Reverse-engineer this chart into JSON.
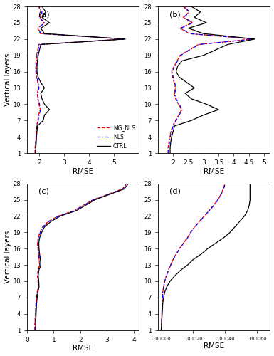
{
  "layers": [
    1,
    2,
    3,
    4,
    5,
    6,
    7,
    8,
    9,
    10,
    11,
    12,
    13,
    14,
    15,
    16,
    17,
    18,
    19,
    20,
    21,
    22,
    23,
    24,
    25,
    26,
    27,
    28
  ],
  "panel_labels": [
    "(a)",
    "(b)",
    "(c)",
    "(d)"
  ],
  "ylabel": "Vertical layers",
  "legend_labels": [
    "MG_NLS",
    "NLS",
    "CTRL"
  ],
  "panel_a": {
    "ctrl": [
      1.85,
      1.85,
      1.87,
      1.88,
      1.9,
      1.92,
      2.15,
      2.2,
      2.4,
      2.2,
      2.1,
      2.05,
      2.2,
      2.05,
      1.95,
      1.9,
      1.9,
      1.92,
      1.95,
      2.0,
      2.05,
      5.45,
      2.2,
      2.05,
      2.4,
      2.1,
      2.25,
      2.1
    ],
    "nls": [
      1.83,
      1.83,
      1.85,
      1.87,
      1.88,
      1.9,
      1.95,
      1.98,
      2.05,
      2.0,
      1.95,
      1.93,
      1.98,
      1.95,
      1.9,
      1.87,
      1.87,
      1.88,
      1.9,
      1.95,
      1.98,
      5.42,
      2.05,
      1.95,
      2.2,
      2.0,
      2.1,
      1.98
    ],
    "mg_nls": [
      1.82,
      1.82,
      1.84,
      1.86,
      1.87,
      1.89,
      1.93,
      1.96,
      2.03,
      1.98,
      1.93,
      1.91,
      1.96,
      1.93,
      1.88,
      1.85,
      1.85,
      1.86,
      1.88,
      1.93,
      1.96,
      5.4,
      2.03,
      1.93,
      2.18,
      1.98,
      2.08,
      1.96
    ],
    "xlim": [
      1.5,
      6.0
    ],
    "xticks": [
      2.0,
      3.0,
      4.0,
      5.0
    ]
  },
  "panel_b": {
    "ctrl": [
      1.9,
      1.9,
      1.92,
      1.95,
      2.0,
      2.05,
      2.6,
      3.0,
      3.5,
      3.1,
      2.6,
      2.4,
      2.7,
      2.45,
      2.2,
      2.1,
      2.15,
      2.3,
      3.0,
      3.4,
      3.8,
      4.7,
      3.0,
      2.5,
      3.1,
      2.7,
      2.9,
      2.6
    ],
    "nls": [
      1.85,
      1.85,
      1.88,
      1.9,
      1.95,
      2.0,
      2.1,
      2.2,
      2.3,
      2.2,
      2.1,
      2.05,
      2.1,
      2.05,
      2.0,
      1.97,
      2.05,
      2.15,
      2.25,
      2.55,
      2.85,
      4.65,
      2.55,
      2.25,
      2.65,
      2.35,
      2.55,
      2.35
    ],
    "mg_nls": [
      1.83,
      1.83,
      1.86,
      1.88,
      1.93,
      1.98,
      2.08,
      2.18,
      2.28,
      2.18,
      2.08,
      2.03,
      2.08,
      2.03,
      1.98,
      1.95,
      2.03,
      2.13,
      2.23,
      2.53,
      2.83,
      4.63,
      2.53,
      2.23,
      2.63,
      2.33,
      2.53,
      2.33
    ],
    "xlim": [
      1.5,
      5.2
    ],
    "xticks": [
      2.0,
      2.5,
      3.0,
      3.5,
      4.0,
      4.5,
      5.0
    ]
  },
  "panel_c": {
    "ctrl": [
      0.32,
      0.32,
      0.33,
      0.34,
      0.35,
      0.36,
      0.38,
      0.41,
      0.45,
      0.44,
      0.42,
      0.44,
      0.52,
      0.5,
      0.47,
      0.45,
      0.44,
      0.47,
      0.55,
      0.65,
      0.9,
      1.25,
      1.85,
      2.2,
      2.55,
      3.1,
      3.65,
      3.8
    ],
    "nls": [
      0.3,
      0.3,
      0.31,
      0.32,
      0.33,
      0.34,
      0.36,
      0.39,
      0.43,
      0.42,
      0.4,
      0.42,
      0.48,
      0.46,
      0.44,
      0.42,
      0.4,
      0.43,
      0.5,
      0.6,
      0.82,
      1.18,
      1.78,
      2.13,
      2.5,
      3.05,
      3.6,
      3.75
    ],
    "mg_nls": [
      0.29,
      0.29,
      0.3,
      0.31,
      0.32,
      0.33,
      0.35,
      0.38,
      0.42,
      0.41,
      0.39,
      0.41,
      0.47,
      0.45,
      0.43,
      0.41,
      0.39,
      0.42,
      0.48,
      0.58,
      0.8,
      1.16,
      1.76,
      2.11,
      2.48,
      3.03,
      3.58,
      3.73
    ],
    "xlim": [
      0.0,
      4.2
    ],
    "xticks": [
      0.0,
      1.0,
      2.0,
      3.0,
      4.0
    ]
  },
  "panel_d": {
    "ctrl": [
      0.0,
      2e-06,
      4e-06,
      6e-06,
      8e-06,
      1e-05,
      1.5e-05,
      2.2e-05,
      3.5e-05,
      5.5e-05,
      8.5e-05,
      0.00012,
      0.000165,
      0.0002,
      0.00025,
      0.00029,
      0.00034,
      0.00039,
      0.00043,
      0.00046,
      0.00049,
      0.00052,
      0.00054,
      0.00055,
      0.000555,
      0.000555,
      0.000555,
      0.000555
    ],
    "nls": [
      0.0,
      2e-06,
      3e-06,
      4e-06,
      5e-06,
      6e-06,
      8e-06,
      1e-05,
      1.5e-05,
      2.2e-05,
      3.2e-05,
      4.5e-05,
      6e-05,
      7.5e-05,
      9.5e-05,
      0.000115,
      0.00014,
      0.000165,
      0.000185,
      0.00021,
      0.00024,
      0.00027,
      0.0003,
      0.00033,
      0.000355,
      0.000375,
      0.00039,
      0.0004
    ],
    "mg_nls": [
      0.0,
      2e-06,
      3e-06,
      4e-06,
      5e-06,
      6e-06,
      8e-06,
      1e-05,
      1.5e-05,
      2.2e-05,
      3.2e-05,
      4.4e-05,
      5.9e-05,
      7.4e-05,
      9.4e-05,
      0.000114,
      0.000138,
      0.000163,
      0.000183,
      0.000208,
      0.000238,
      0.000268,
      0.000298,
      0.000328,
      0.000353,
      0.000373,
      0.000388,
      0.000398
    ],
    "xlim": [
      -2e-05,
      0.00068
    ],
    "xticks": [
      0.0,
      0.0002,
      0.0004,
      0.0006
    ]
  },
  "yticks": [
    1,
    4,
    7,
    10,
    13,
    16,
    19,
    22,
    25,
    28
  ],
  "ylim": [
    1,
    28
  ]
}
